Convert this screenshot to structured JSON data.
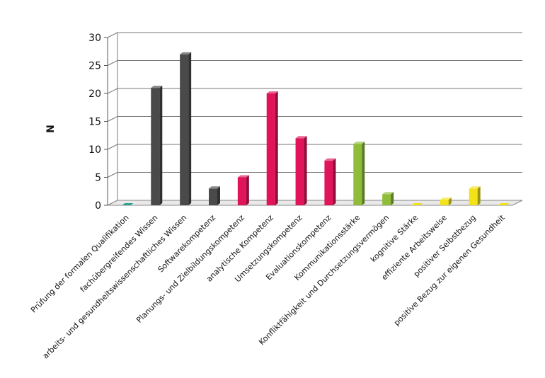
{
  "chart_data": {
    "type": "bar",
    "title": "",
    "xlabel": "",
    "ylabel": "N",
    "ylim": [
      0,
      30
    ],
    "yticks": [
      "0",
      "5",
      "10",
      "15",
      "20",
      "25",
      "30"
    ],
    "grid": true,
    "legend": "none",
    "categories": [
      "Prüfung der formalen Qualifikation",
      "fachübergreifendes Wissen",
      "arbeits- und gesundheitswissenschaftliches Wissen",
      "Softwarekompetenz",
      "Planungs- und Zielbildungskompetenz",
      "analytische Kompetenz",
      "Umsetzungskompetenz",
      "Evaluationskompetenz",
      "Kommunikationsstärke",
      "Konfliktfähigkeit und Durchsetzungsvermögen",
      "kognitive Stärke",
      "effiziente Arbeitsweise",
      "positiver Selbstbezug",
      "positive Bezug zur eigenen Gesundheit"
    ],
    "values": [
      0,
      21,
      27,
      3,
      5,
      20,
      12,
      8,
      11,
      2,
      0,
      1,
      3,
      0
    ],
    "colors": [
      "#2aa58a",
      "#4a4a4a",
      "#4a4a4a",
      "#4a4a4a",
      "#e0145a",
      "#e0145a",
      "#e0145a",
      "#e0145a",
      "#8fbd3a",
      "#8fbd3a",
      "#f2e21a",
      "#f2e21a",
      "#f2e21a",
      "#f2e21a"
    ]
  }
}
